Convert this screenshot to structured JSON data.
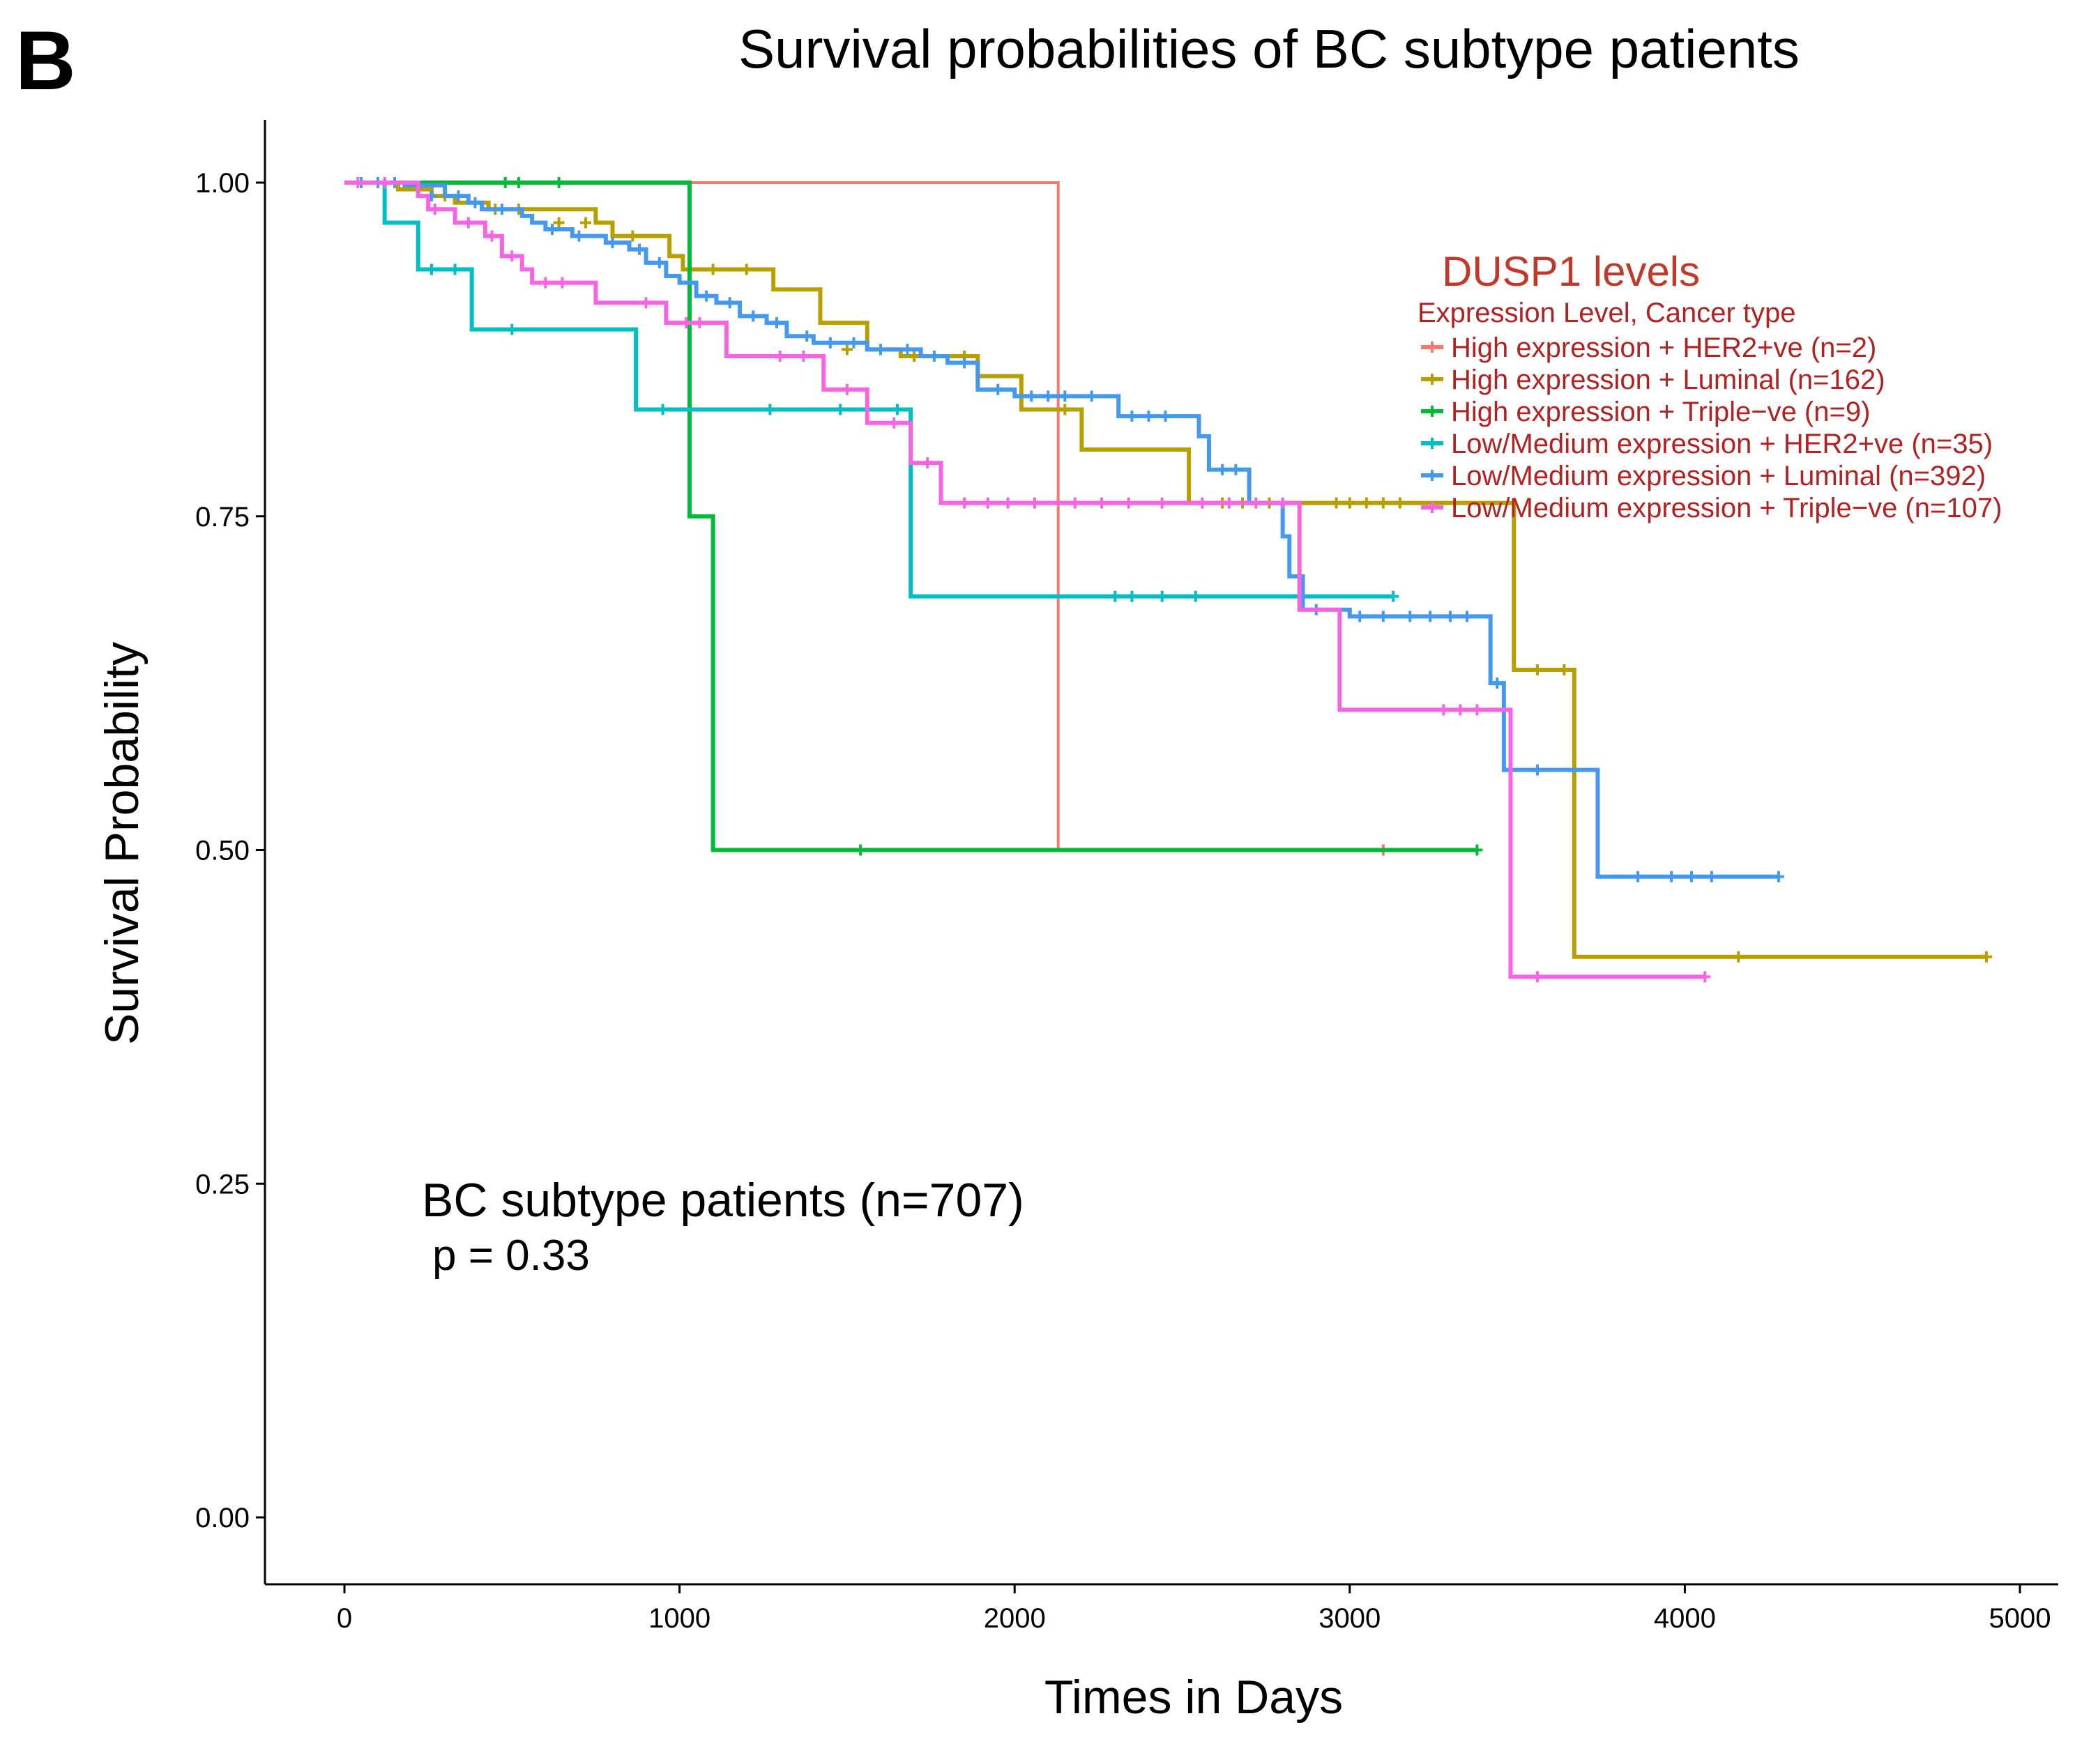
{
  "panel_letter": "B",
  "chart_data": {
    "type": "line",
    "subtype": "kaplan-meier",
    "title": "Survival  probabilities of BC subtype patients",
    "xlabel": "Times in Days",
    "ylabel": "Survival Probability",
    "xlim": [
      -240,
      5100
    ],
    "ylim": [
      -0.05,
      1.05
    ],
    "xticks": [
      0,
      1000,
      2000,
      3000,
      4000,
      5000
    ],
    "xtick_labels": [
      "0",
      "1000",
      "2000",
      "3000",
      "4000",
      "5000"
    ],
    "yticks": [
      0,
      0.25,
      0.5,
      0.75,
      1.0
    ],
    "ytick_labels": [
      "0.00",
      "0.25",
      "0.50",
      "0.75",
      "1.00"
    ],
    "grid": false,
    "legend": {
      "title": "DUSP1 levels",
      "subtitle": "Expression Level, Cancer type",
      "title_color": "#c0392b",
      "text_color": "#b22222",
      "placement": "right"
    },
    "annotation": {
      "line1": "BC subtype patients (n=707)",
      "line2": "p = 0.33"
    },
    "series": [
      {
        "name": "High expression + HER2+ve (n=2)",
        "color": "#f8766d",
        "steps": [
          [
            0,
            1.0
          ],
          [
            2130,
            0.5
          ],
          [
            3100,
            0.5
          ]
        ],
        "censors": [
          [
            3100,
            0.5
          ]
        ]
      },
      {
        "name": "High expression + Luminal (n=162)",
        "color": "#b79f00",
        "steps": [
          [
            0,
            1.0
          ],
          [
            160,
            0.995
          ],
          [
            260,
            0.99
          ],
          [
            330,
            0.985
          ],
          [
            430,
            0.98
          ],
          [
            750,
            0.97
          ],
          [
            800,
            0.96
          ],
          [
            970,
            0.945
          ],
          [
            1010,
            0.935
          ],
          [
            1280,
            0.92
          ],
          [
            1420,
            0.895
          ],
          [
            1560,
            0.875
          ],
          [
            1660,
            0.87
          ],
          [
            1890,
            0.855
          ],
          [
            2020,
            0.83
          ],
          [
            2200,
            0.8
          ],
          [
            2520,
            0.76
          ],
          [
            3180,
            0.76
          ],
          [
            3490,
            0.635
          ],
          [
            3670,
            0.42
          ],
          [
            4900,
            0.42
          ]
        ],
        "censors": [
          [
            300,
            0.99
          ],
          [
            450,
            0.98
          ],
          [
            520,
            0.98
          ],
          [
            640,
            0.97
          ],
          [
            720,
            0.97
          ],
          [
            860,
            0.96
          ],
          [
            1100,
            0.935
          ],
          [
            1200,
            0.935
          ],
          [
            1500,
            0.875
          ],
          [
            1700,
            0.87
          ],
          [
            1850,
            0.87
          ],
          [
            2150,
            0.83
          ],
          [
            2620,
            0.76
          ],
          [
            2680,
            0.76
          ],
          [
            2760,
            0.76
          ],
          [
            2960,
            0.76
          ],
          [
            3000,
            0.76
          ],
          [
            3050,
            0.76
          ],
          [
            3100,
            0.76
          ],
          [
            3150,
            0.76
          ],
          [
            3560,
            0.635
          ],
          [
            3640,
            0.635
          ],
          [
            4160,
            0.42
          ],
          [
            4900,
            0.42
          ]
        ]
      },
      {
        "name": "High expression + Triple−ve (n=9)",
        "color": "#00ba38",
        "steps": [
          [
            0,
            1.0
          ],
          [
            1030,
            0.75
          ],
          [
            1100,
            0.5
          ],
          [
            3380,
            0.5
          ]
        ],
        "censors": [
          [
            480,
            1.0
          ],
          [
            520,
            1.0
          ],
          [
            640,
            1.0
          ],
          [
            1540,
            0.5
          ],
          [
            3380,
            0.5
          ]
        ]
      },
      {
        "name": "Low/Medium expression + HER2+ve (n=35)",
        "color": "#00bfc4",
        "steps": [
          [
            0,
            1.0
          ],
          [
            120,
            0.97
          ],
          [
            220,
            0.935
          ],
          [
            380,
            0.89
          ],
          [
            870,
            0.83
          ],
          [
            1690,
            0.69
          ],
          [
            3130,
            0.69
          ]
        ],
        "censors": [
          [
            260,
            0.935
          ],
          [
            330,
            0.935
          ],
          [
            500,
            0.89
          ],
          [
            950,
            0.83
          ],
          [
            1270,
            0.83
          ],
          [
            1480,
            0.83
          ],
          [
            1650,
            0.83
          ],
          [
            2300,
            0.69
          ],
          [
            2350,
            0.69
          ],
          [
            2440,
            0.69
          ],
          [
            2540,
            0.69
          ],
          [
            3130,
            0.69
          ]
        ]
      },
      {
        "name": "Low/Medium expression + Luminal (n=392)",
        "color": "#4499ee",
        "steps": [
          [
            0,
            1.0
          ],
          [
            180,
            0.998
          ],
          [
            300,
            0.99
          ],
          [
            370,
            0.985
          ],
          [
            410,
            0.98
          ],
          [
            530,
            0.975
          ],
          [
            560,
            0.97
          ],
          [
            600,
            0.965
          ],
          [
            680,
            0.96
          ],
          [
            780,
            0.955
          ],
          [
            850,
            0.95
          ],
          [
            900,
            0.94
          ],
          [
            960,
            0.93
          ],
          [
            1000,
            0.925
          ],
          [
            1050,
            0.915
          ],
          [
            1110,
            0.91
          ],
          [
            1180,
            0.9
          ],
          [
            1260,
            0.895
          ],
          [
            1320,
            0.885
          ],
          [
            1400,
            0.88
          ],
          [
            1560,
            0.875
          ],
          [
            1720,
            0.87
          ],
          [
            1800,
            0.865
          ],
          [
            1890,
            0.845
          ],
          [
            2000,
            0.84
          ],
          [
            2200,
            0.84
          ],
          [
            2310,
            0.825
          ],
          [
            2550,
            0.81
          ],
          [
            2580,
            0.785
          ],
          [
            2700,
            0.76
          ],
          [
            2800,
            0.735
          ],
          [
            2820,
            0.705
          ],
          [
            2860,
            0.68
          ],
          [
            3000,
            0.675
          ],
          [
            3420,
            0.625
          ],
          [
            3460,
            0.56
          ],
          [
            3740,
            0.48
          ],
          [
            4280,
            0.48
          ]
        ],
        "censors": [
          [
            50,
            1.0
          ],
          [
            100,
            1.0
          ],
          [
            150,
            1.0
          ],
          [
            260,
            0.99
          ],
          [
            340,
            0.99
          ],
          [
            390,
            0.985
          ],
          [
            470,
            0.98
          ],
          [
            620,
            0.965
          ],
          [
            700,
            0.96
          ],
          [
            800,
            0.955
          ],
          [
            880,
            0.95
          ],
          [
            940,
            0.94
          ],
          [
            1080,
            0.915
          ],
          [
            1150,
            0.91
          ],
          [
            1220,
            0.9
          ],
          [
            1290,
            0.895
          ],
          [
            1380,
            0.885
          ],
          [
            1450,
            0.88
          ],
          [
            1520,
            0.88
          ],
          [
            1600,
            0.875
          ],
          [
            1680,
            0.875
          ],
          [
            1760,
            0.87
          ],
          [
            1850,
            0.865
          ],
          [
            1950,
            0.845
          ],
          [
            2050,
            0.84
          ],
          [
            2100,
            0.84
          ],
          [
            2150,
            0.84
          ],
          [
            2230,
            0.84
          ],
          [
            2350,
            0.825
          ],
          [
            2400,
            0.825
          ],
          [
            2450,
            0.825
          ],
          [
            2620,
            0.785
          ],
          [
            2660,
            0.785
          ],
          [
            2900,
            0.68
          ],
          [
            3030,
            0.675
          ],
          [
            3100,
            0.675
          ],
          [
            3180,
            0.675
          ],
          [
            3240,
            0.675
          ],
          [
            3300,
            0.675
          ],
          [
            3350,
            0.675
          ],
          [
            3440,
            0.625
          ],
          [
            3560,
            0.56
          ],
          [
            3860,
            0.48
          ],
          [
            3960,
            0.48
          ],
          [
            4020,
            0.48
          ],
          [
            4080,
            0.48
          ],
          [
            4280,
            0.48
          ]
        ]
      },
      {
        "name": "Low/Medium expression + Triple−ve (n=107)",
        "color": "#f564e3",
        "steps": [
          [
            0,
            1.0
          ],
          [
            220,
            0.99
          ],
          [
            250,
            0.98
          ],
          [
            330,
            0.97
          ],
          [
            420,
            0.96
          ],
          [
            470,
            0.945
          ],
          [
            530,
            0.935
          ],
          [
            560,
            0.925
          ],
          [
            750,
            0.91
          ],
          [
            960,
            0.895
          ],
          [
            1140,
            0.87
          ],
          [
            1430,
            0.845
          ],
          [
            1560,
            0.82
          ],
          [
            1690,
            0.79
          ],
          [
            1780,
            0.76
          ],
          [
            2850,
            0.68
          ],
          [
            2970,
            0.605
          ],
          [
            3480,
            0.405
          ],
          [
            4060,
            0.405
          ]
        ],
        "censors": [
          [
            40,
            1.0
          ],
          [
            120,
            1.0
          ],
          [
            270,
            0.98
          ],
          [
            370,
            0.97
          ],
          [
            440,
            0.96
          ],
          [
            500,
            0.945
          ],
          [
            600,
            0.925
          ],
          [
            650,
            0.925
          ],
          [
            900,
            0.91
          ],
          [
            1020,
            0.895
          ],
          [
            1060,
            0.895
          ],
          [
            1300,
            0.87
          ],
          [
            1370,
            0.87
          ],
          [
            1500,
            0.845
          ],
          [
            1640,
            0.82
          ],
          [
            1740,
            0.79
          ],
          [
            1850,
            0.76
          ],
          [
            1920,
            0.76
          ],
          [
            1980,
            0.76
          ],
          [
            2060,
            0.76
          ],
          [
            2180,
            0.76
          ],
          [
            2260,
            0.76
          ],
          [
            2340,
            0.76
          ],
          [
            2440,
            0.76
          ],
          [
            2560,
            0.76
          ],
          [
            2640,
            0.76
          ],
          [
            2720,
            0.76
          ],
          [
            2800,
            0.76
          ],
          [
            3280,
            0.605
          ],
          [
            3330,
            0.605
          ],
          [
            3380,
            0.605
          ],
          [
            3560,
            0.405
          ],
          [
            4060,
            0.405
          ]
        ]
      }
    ]
  }
}
